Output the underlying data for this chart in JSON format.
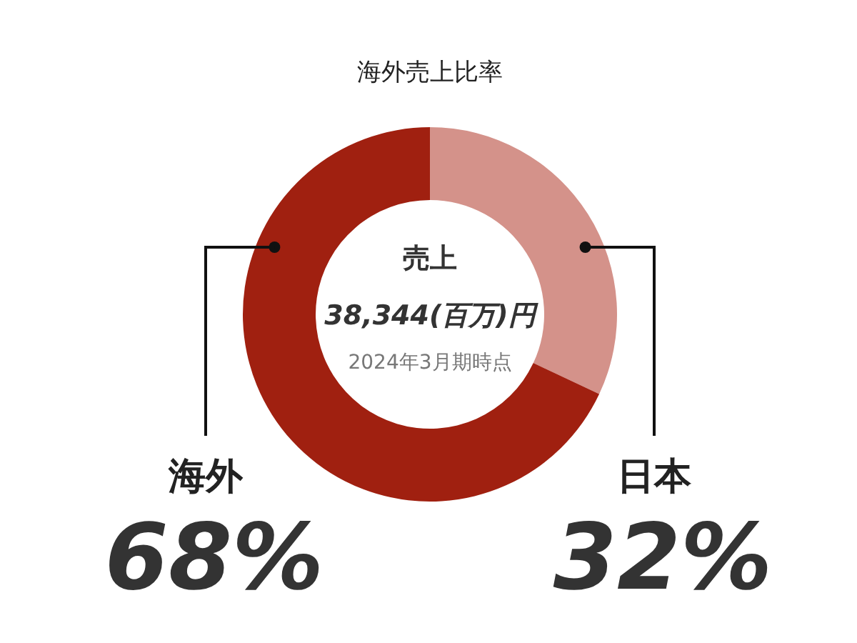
{
  "chart_data": {
    "type": "donut",
    "title": "海外売上比率",
    "categories": [
      "日本",
      "海外"
    ],
    "values": [
      32,
      68
    ],
    "colors": [
      "#d4928a",
      "#a02010"
    ],
    "value_labels": [
      "32%",
      "68%"
    ],
    "annotations": [
      "売上",
      "38,344(百万)円",
      "2024年3月期時点"
    ],
    "legend": false
  }
}
